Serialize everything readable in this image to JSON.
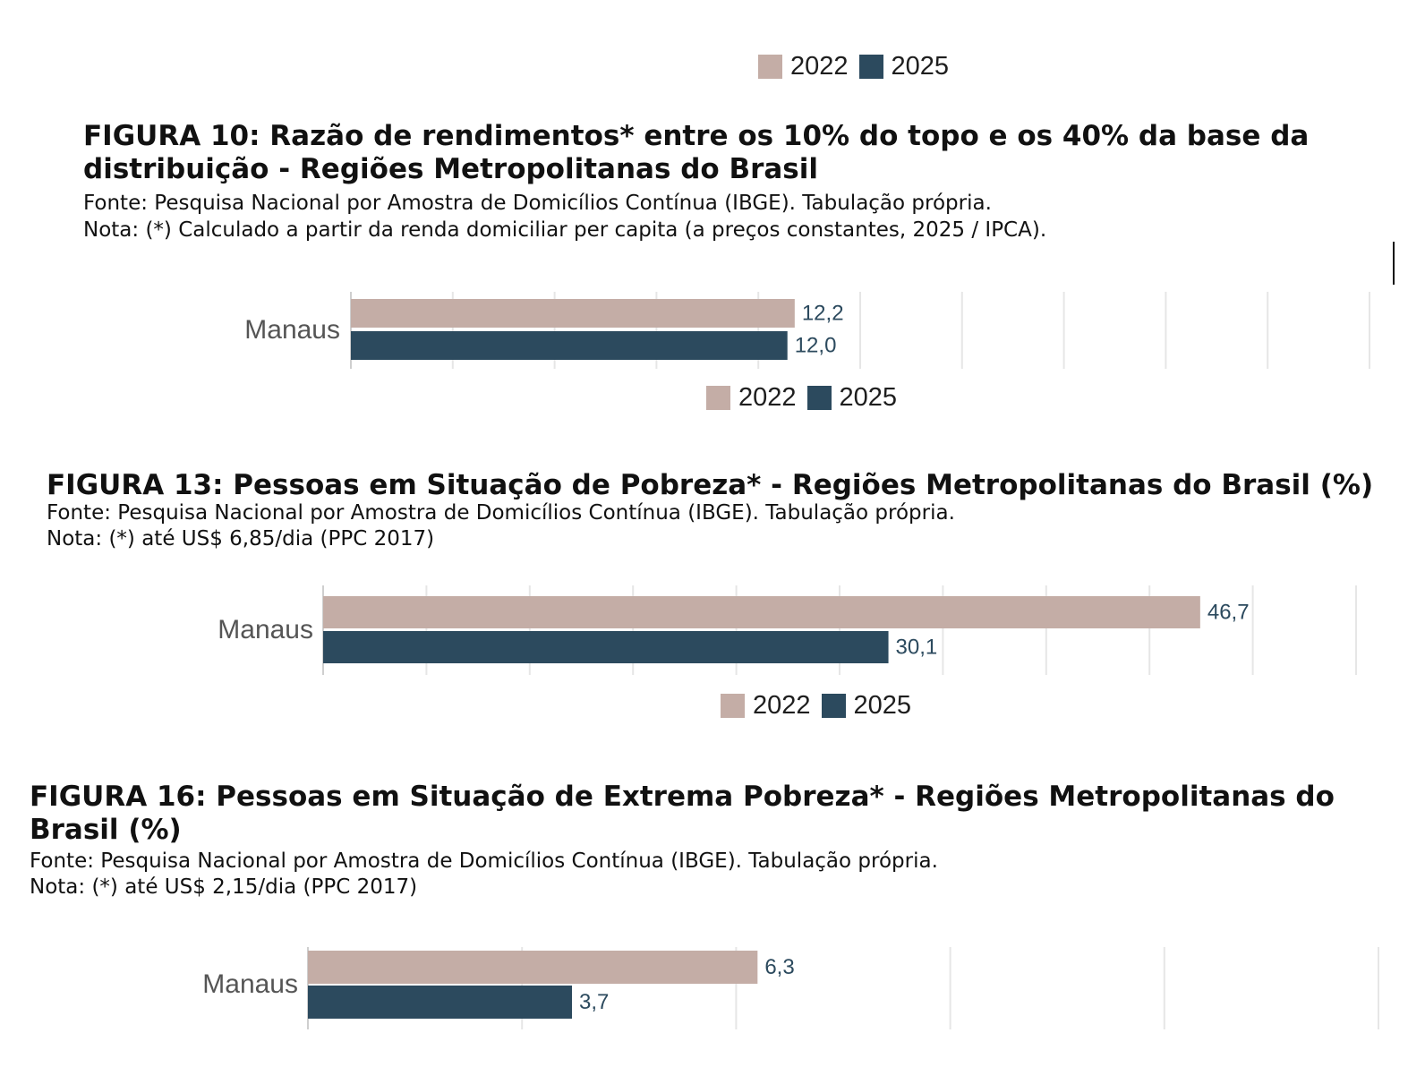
{
  "colors": {
    "y2022": "#c4ada6",
    "y2025": "#2c4a5e",
    "grid": "#e6e6e6",
    "axis": "#cfcfcf",
    "category_text": "#555555",
    "value_text": "#2c4a5e"
  },
  "legend": {
    "label_2022": "2022",
    "label_2025": "2025"
  },
  "fig10": {
    "title": "FIGURA 10: Razão de rendimentos* entre os 10% do topo e os 40% da base da distribuição - Regiões Metropolitanas do Brasil",
    "source": "Fonte: Pesquisa Nacional por Amostra de Domicílios Contínua (IBGE). Tabulação própria.",
    "note": "Nota: (*) Calculado a partir da renda domiciliar per capita (a preços constantes, 2025 / IPCA)."
  },
  "fig13": {
    "title": "FIGURA 13: Pessoas em Situação de Pobreza* - Regiões Metropolitanas do Brasil (%)",
    "source": "Fonte: Pesquisa Nacional por Amostra de Domicílios Contínua (IBGE). Tabulação própria.",
    "note": "Nota: (*) até US$ 6,85/dia (PPC 2017)"
  },
  "fig16": {
    "title": "FIGURA 16: Pessoas em Situação de Extrema Pobreza* - Regiões Metropolitanas do Brasil (%)",
    "source": "Fonte: Pesquisa Nacional por Amostra de Domicílios Contínua (IBGE). Tabulação própria.",
    "note": "Nota: (*) até US$ 2,15/dia (PPC 2017)"
  },
  "chart_data": [
    {
      "type": "bar",
      "orientation": "horizontal",
      "title": "FIGURA 10: Razão de rendimentos* entre os 10% do topo e os 40% da base da distribuição - Regiões Metropolitanas do Brasil",
      "categories": [
        "Manaus"
      ],
      "series": [
        {
          "name": "2022",
          "values": [
            12.2
          ],
          "labels": [
            "12,2"
          ],
          "color": "#c4ada6"
        },
        {
          "name": "2025",
          "values": [
            12.0
          ],
          "labels": [
            "12,0"
          ],
          "color": "#2c4a5e"
        }
      ],
      "xlim": [
        0,
        28
      ],
      "grid": true
    },
    {
      "type": "bar",
      "orientation": "horizontal",
      "title": "FIGURA 13: Pessoas em Situação de Pobreza* - Regiões Metropolitanas do Brasil (%)",
      "categories": [
        "Manaus"
      ],
      "series": [
        {
          "name": "2022",
          "values": [
            46.7
          ],
          "labels": [
            "46,7"
          ],
          "color": "#c4ada6"
        },
        {
          "name": "2025",
          "values": [
            30.1
          ],
          "labels": [
            "30,1"
          ],
          "color": "#2c4a5e"
        }
      ],
      "xlim": [
        0,
        55
      ],
      "grid": true
    },
    {
      "type": "bar",
      "orientation": "horizontal",
      "title": "FIGURA 16: Pessoas em Situação de Extrema Pobreza* - Regiões Metropolitanas do Brasil (%)",
      "categories": [
        "Manaus"
      ],
      "series": [
        {
          "name": "2022",
          "values": [
            6.3
          ],
          "labels": [
            "6,3"
          ],
          "color": "#c4ada6"
        },
        {
          "name": "2025",
          "values": [
            3.7
          ],
          "labels": [
            "3,7"
          ],
          "color": "#2c4a5e"
        }
      ],
      "xlim": [
        0,
        15
      ],
      "grid": true
    }
  ]
}
